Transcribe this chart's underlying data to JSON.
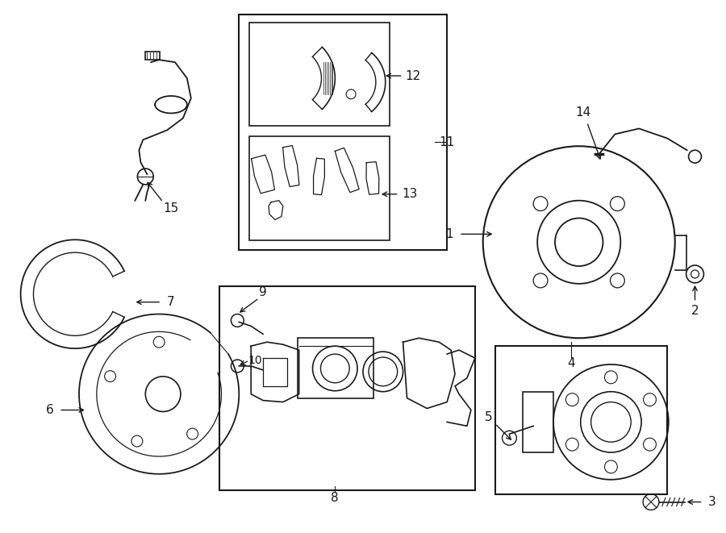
{
  "bg_color": "#ffffff",
  "line_color": "#1a1a1a",
  "fig_width": 9.0,
  "fig_height": 6.61,
  "font_size": 11
}
